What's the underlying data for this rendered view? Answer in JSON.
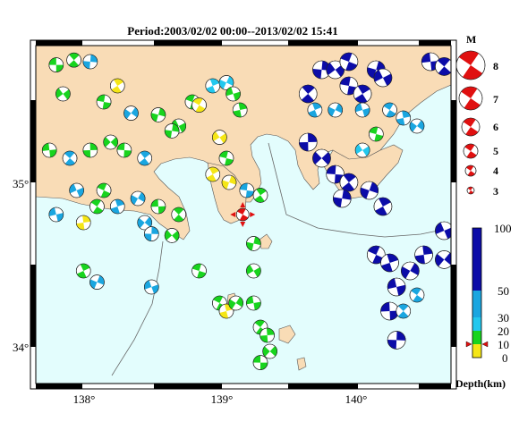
{
  "title": "Period:2003/02/02 00:00--2013/02/02 15:41",
  "axes": {
    "x_ticks": [
      "138°",
      "139°",
      "140°"
    ],
    "y_ticks": [
      "35°",
      "34°"
    ]
  },
  "magnitude_legend": {
    "heading": "M",
    "labels": [
      "8",
      "7",
      "6",
      "5",
      "4",
      "3"
    ]
  },
  "depth_legend": {
    "title": "Depth(km)",
    "labels": [
      "100",
      "50",
      "30",
      "20",
      "10",
      "0"
    ]
  },
  "colors": {
    "land": "#f9dcb6",
    "sea": "#e3fdfd",
    "depth_0_10": "#f5e616",
    "depth_10_20": "#18d41e",
    "depth_20_30": "#22c8ee",
    "depth_30_50": "#1aa6e0",
    "depth_50_100": "#0c0ca8",
    "mainshock": "#e01010"
  },
  "chart_data": {
    "type": "scatter",
    "x_range": [
      137.7,
      140.75
    ],
    "y_range": [
      33.75,
      35.85
    ],
    "events": [
      {
        "lon": 137.85,
        "lat": 35.73,
        "depth": 15
      },
      {
        "lon": 137.98,
        "lat": 35.76,
        "depth": 15
      },
      {
        "lon": 138.1,
        "lat": 35.75,
        "depth": 30
      },
      {
        "lon": 137.9,
        "lat": 35.55,
        "depth": 15
      },
      {
        "lon": 138.2,
        "lat": 35.5,
        "depth": 15
      },
      {
        "lon": 138.3,
        "lat": 35.6,
        "depth": 5
      },
      {
        "lon": 138.6,
        "lat": 35.42,
        "depth": 15
      },
      {
        "lon": 138.75,
        "lat": 35.35,
        "depth": 15
      },
      {
        "lon": 138.85,
        "lat": 35.5,
        "depth": 15
      },
      {
        "lon": 139.0,
        "lat": 35.6,
        "depth": 20
      },
      {
        "lon": 139.1,
        "lat": 35.62,
        "depth": 20
      },
      {
        "lon": 139.15,
        "lat": 35.55,
        "depth": 15
      },
      {
        "lon": 138.9,
        "lat": 35.48,
        "depth": 5
      },
      {
        "lon": 139.2,
        "lat": 35.45,
        "depth": 15
      },
      {
        "lon": 138.4,
        "lat": 35.43,
        "depth": 30
      },
      {
        "lon": 137.8,
        "lat": 35.2,
        "depth": 15
      },
      {
        "lon": 137.95,
        "lat": 35.15,
        "depth": 30
      },
      {
        "lon": 138.1,
        "lat": 35.2,
        "depth": 15
      },
      {
        "lon": 138.25,
        "lat": 35.25,
        "depth": 15
      },
      {
        "lon": 138.35,
        "lat": 35.2,
        "depth": 15
      },
      {
        "lon": 138.5,
        "lat": 35.15,
        "depth": 30
      },
      {
        "lon": 138.7,
        "lat": 35.32,
        "depth": 15
      },
      {
        "lon": 139.05,
        "lat": 35.28,
        "depth": 5
      },
      {
        "lon": 139.1,
        "lat": 35.15,
        "depth": 15
      },
      {
        "lon": 139.0,
        "lat": 35.05,
        "depth": 5
      },
      {
        "lon": 139.12,
        "lat": 35.0,
        "depth": 5
      },
      {
        "lon": 138.0,
        "lat": 34.95,
        "depth": 30
      },
      {
        "lon": 138.2,
        "lat": 34.95,
        "depth": 15
      },
      {
        "lon": 138.3,
        "lat": 34.85,
        "depth": 30
      },
      {
        "lon": 138.45,
        "lat": 34.9,
        "depth": 30
      },
      {
        "lon": 137.85,
        "lat": 34.8,
        "depth": 30
      },
      {
        "lon": 138.15,
        "lat": 34.85,
        "depth": 15
      },
      {
        "lon": 138.05,
        "lat": 34.75,
        "depth": 5
      },
      {
        "lon": 138.5,
        "lat": 34.75,
        "depth": 30
      },
      {
        "lon": 138.6,
        "lat": 34.85,
        "depth": 15
      },
      {
        "lon": 138.75,
        "lat": 34.8,
        "depth": 15
      },
      {
        "lon": 138.55,
        "lat": 34.68,
        "depth": 30
      },
      {
        "lon": 138.7,
        "lat": 34.67,
        "depth": 15
      },
      {
        "lon": 139.25,
        "lat": 34.95,
        "depth": 30
      },
      {
        "lon": 139.35,
        "lat": 34.92,
        "depth": 15
      },
      {
        "lon": 139.3,
        "lat": 34.62,
        "depth": 15
      },
      {
        "lon": 139.3,
        "lat": 34.45,
        "depth": 15
      },
      {
        "lon": 138.9,
        "lat": 34.45,
        "depth": 15
      },
      {
        "lon": 138.05,
        "lat": 34.45,
        "depth": 15
      },
      {
        "lon": 138.15,
        "lat": 34.38,
        "depth": 30
      },
      {
        "lon": 138.55,
        "lat": 34.35,
        "depth": 30
      },
      {
        "lon": 139.05,
        "lat": 34.25,
        "depth": 15
      },
      {
        "lon": 139.1,
        "lat": 34.2,
        "depth": 5
      },
      {
        "lon": 139.17,
        "lat": 34.25,
        "depth": 15
      },
      {
        "lon": 139.3,
        "lat": 34.25,
        "depth": 15
      },
      {
        "lon": 139.35,
        "lat": 34.1,
        "depth": 15
      },
      {
        "lon": 139.4,
        "lat": 34.05,
        "depth": 15
      },
      {
        "lon": 139.42,
        "lat": 33.95,
        "depth": 15
      },
      {
        "lon": 139.35,
        "lat": 33.88,
        "depth": 15
      },
      {
        "lon": 139.7,
        "lat": 35.55,
        "depth": 80
      },
      {
        "lon": 139.8,
        "lat": 35.7,
        "depth": 80
      },
      {
        "lon": 139.9,
        "lat": 35.7,
        "depth": 80
      },
      {
        "lon": 140.0,
        "lat": 35.6,
        "depth": 80
      },
      {
        "lon": 140.1,
        "lat": 35.55,
        "depth": 80
      },
      {
        "lon": 140.2,
        "lat": 35.7,
        "depth": 80
      },
      {
        "lon": 140.25,
        "lat": 35.65,
        "depth": 80
      },
      {
        "lon": 140.0,
        "lat": 35.75,
        "depth": 80
      },
      {
        "lon": 139.75,
        "lat": 35.45,
        "depth": 40
      },
      {
        "lon": 139.9,
        "lat": 35.45,
        "depth": 40
      },
      {
        "lon": 140.1,
        "lat": 35.45,
        "depth": 40
      },
      {
        "lon": 140.3,
        "lat": 35.45,
        "depth": 40
      },
      {
        "lon": 140.4,
        "lat": 35.4,
        "depth": 40
      },
      {
        "lon": 140.5,
        "lat": 35.35,
        "depth": 30
      },
      {
        "lon": 140.6,
        "lat": 35.75,
        "depth": 80
      },
      {
        "lon": 140.7,
        "lat": 35.72,
        "depth": 80
      },
      {
        "lon": 139.7,
        "lat": 35.25,
        "depth": 80
      },
      {
        "lon": 139.8,
        "lat": 35.15,
        "depth": 80
      },
      {
        "lon": 139.9,
        "lat": 35.05,
        "depth": 80
      },
      {
        "lon": 140.0,
        "lat": 35.0,
        "depth": 80
      },
      {
        "lon": 139.95,
        "lat": 34.9,
        "depth": 80
      },
      {
        "lon": 140.1,
        "lat": 35.2,
        "depth": 25
      },
      {
        "lon": 140.2,
        "lat": 35.3,
        "depth": 15
      },
      {
        "lon": 140.25,
        "lat": 34.85,
        "depth": 80
      },
      {
        "lon": 140.15,
        "lat": 34.95,
        "depth": 80
      },
      {
        "lon": 140.7,
        "lat": 34.7,
        "depth": 80
      },
      {
        "lon": 140.2,
        "lat": 34.55,
        "depth": 80
      },
      {
        "lon": 140.3,
        "lat": 34.5,
        "depth": 80
      },
      {
        "lon": 140.45,
        "lat": 34.45,
        "depth": 80
      },
      {
        "lon": 140.35,
        "lat": 34.35,
        "depth": 80
      },
      {
        "lon": 140.5,
        "lat": 34.3,
        "depth": 30
      },
      {
        "lon": 140.55,
        "lat": 34.55,
        "depth": 80
      },
      {
        "lon": 140.7,
        "lat": 34.52,
        "depth": 80
      },
      {
        "lon": 140.3,
        "lat": 34.2,
        "depth": 80
      },
      {
        "lon": 140.4,
        "lat": 34.2,
        "depth": 40
      },
      {
        "lon": 140.35,
        "lat": 34.02,
        "depth": 80
      }
    ],
    "mainshock": {
      "lon": 139.22,
      "lat": 34.8,
      "depth": 10
    }
  }
}
